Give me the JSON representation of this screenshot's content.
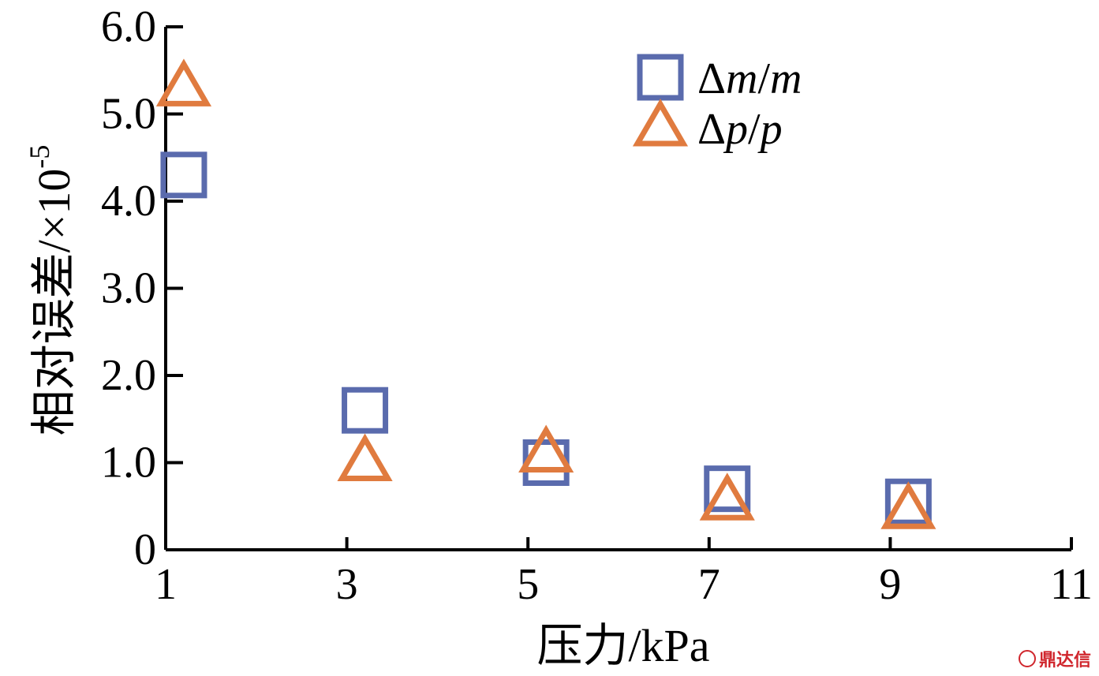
{
  "chart_data": {
    "type": "scatter",
    "title": "",
    "xlabel": "压力/kPa",
    "ylabel": "相对误差/×10",
    "ylabel_exponent": "-5",
    "xlim": [
      1,
      11
    ],
    "ylim": [
      0,
      6.0
    ],
    "x_ticks": [
      1,
      3,
      5,
      7,
      9,
      11
    ],
    "x_tick_labels": [
      "1",
      "3",
      "5",
      "7",
      "9",
      "11"
    ],
    "y_ticks": [
      0,
      1.0,
      2.0,
      3.0,
      4.0,
      5.0,
      6.0
    ],
    "y_tick_labels": [
      "0",
      "1.0",
      "2.0",
      "3.0",
      "4.0",
      "5.0",
      "6.0"
    ],
    "grid": false,
    "legend_position": "top-right",
    "series": [
      {
        "name": "Δm/m",
        "legend_prefix": "Δ",
        "legend_var": "m",
        "legend_sep": "/",
        "legend_var2": "m",
        "marker": "square",
        "color": "#5a6bad",
        "x": [
          1.2,
          3.2,
          5.2,
          7.2,
          9.2
        ],
        "y": [
          4.3,
          1.6,
          1.0,
          0.7,
          0.55
        ]
      },
      {
        "name": "Δp/p",
        "legend_prefix": "Δ",
        "legend_var": "p",
        "legend_sep": "/",
        "legend_var2": "p",
        "marker": "triangle",
        "color": "#e07b3f",
        "x": [
          1.2,
          3.2,
          5.2,
          7.2,
          9.2
        ],
        "y": [
          5.3,
          1.0,
          1.1,
          0.55,
          0.45
        ]
      }
    ]
  },
  "watermark": {
    "text": "鼎达信"
  }
}
